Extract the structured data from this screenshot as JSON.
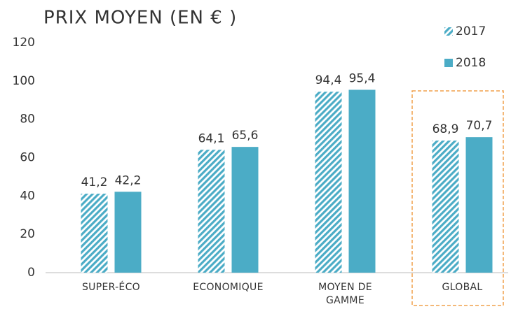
{
  "chart_data": {
    "type": "bar",
    "title": "PRIX MOYEN (EN € )",
    "categories": [
      "SUPER-ÉCO",
      "ECONOMIQUE",
      "MOYEN DE\nGAMME",
      "GLOBAL"
    ],
    "series": [
      {
        "name": "2017",
        "color": "#4bacc6",
        "pattern": "hatched",
        "values": [
          41.2,
          64.1,
          94.4,
          68.9
        ],
        "value_labels": [
          "41,2",
          "64,1",
          "94,4",
          "68,9"
        ]
      },
      {
        "name": "2018",
        "color": "#4bacc6",
        "values": [
          42.2,
          65.6,
          95.4,
          70.7
        ],
        "value_labels": [
          "42,2",
          "65,6",
          "95,4",
          "70,7"
        ]
      }
    ],
    "ylim": [
      0,
      120
    ],
    "yticks": [
      0,
      20,
      40,
      60,
      80,
      100,
      120
    ],
    "grid": false,
    "legend": "top-right"
  }
}
